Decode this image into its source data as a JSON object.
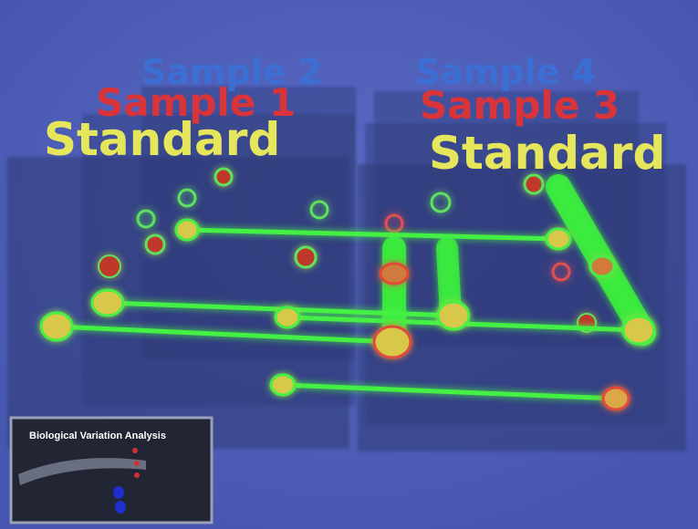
{
  "scene": {
    "labels": {
      "left": {
        "back": "Sample 2",
        "middle": "Sample 1",
        "front": "Standard"
      },
      "right": {
        "back": "Sample 4",
        "middle": "Sample 3",
        "front": "Standard"
      }
    },
    "inset": {
      "title": "Biological Variation Analysis"
    }
  }
}
